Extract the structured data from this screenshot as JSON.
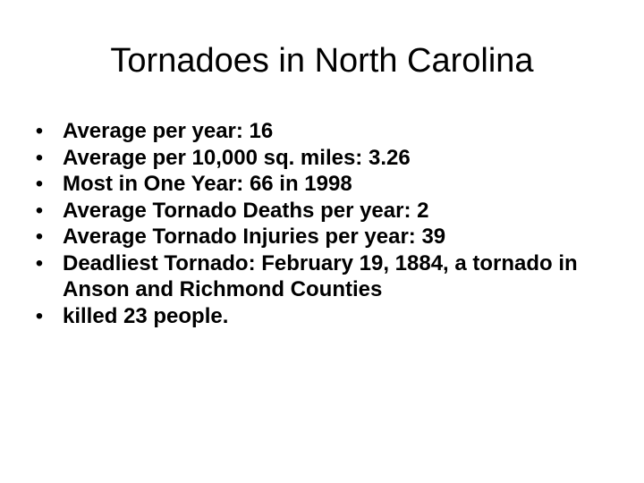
{
  "slide": {
    "title": "Tornadoes in North Carolina",
    "bullets": [
      "Average per year: 16",
      "Average per 10,000 sq. miles: 3.26",
      "Most in One Year: 66 in 1998",
      "Average Tornado Deaths per year: 2",
      "Average Tornado Injuries per year: 39",
      "Deadliest Tornado: February 19, 1884, a tornado in Anson and Richmond Counties",
      "killed 23 people."
    ]
  }
}
